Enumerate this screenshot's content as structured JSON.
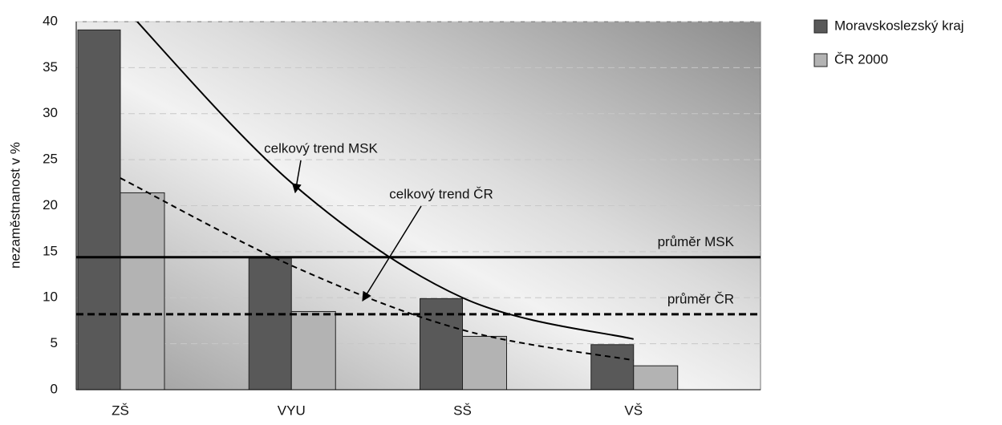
{
  "chart_data": {
    "type": "bar",
    "y_label": "nezaměstnanost v %",
    "categories": [
      "ZŠ",
      "VYU",
      "SŠ",
      "VŠ"
    ],
    "series": [
      {
        "name": "Moravskoslezský kraj",
        "color": "#595959",
        "values": [
          39.1,
          14.3,
          9.9,
          4.9
        ]
      },
      {
        "name": "ČR 2000",
        "color": "#b3b3b3",
        "values": [
          21.4,
          8.5,
          5.8,
          2.6
        ]
      }
    ],
    "reference_lines": [
      {
        "label": "průměr MSK",
        "value": 14.4,
        "style": "solid"
      },
      {
        "label": "průměr ČR",
        "value": 8.2,
        "style": "dashed"
      }
    ],
    "trends": [
      {
        "label": "celkový trend MSK",
        "values": [
          42,
          22.5,
          10,
          5.5
        ],
        "style": "solid"
      },
      {
        "label": "celkový trend ČR",
        "values": [
          23,
          13.5,
          6.5,
          3.2
        ],
        "style": "dashed"
      }
    ],
    "ylim": [
      0,
      40
    ],
    "yticks": [
      0,
      5,
      10,
      15,
      20,
      25,
      30,
      35,
      40
    ],
    "grid": true,
    "legend": "right"
  }
}
